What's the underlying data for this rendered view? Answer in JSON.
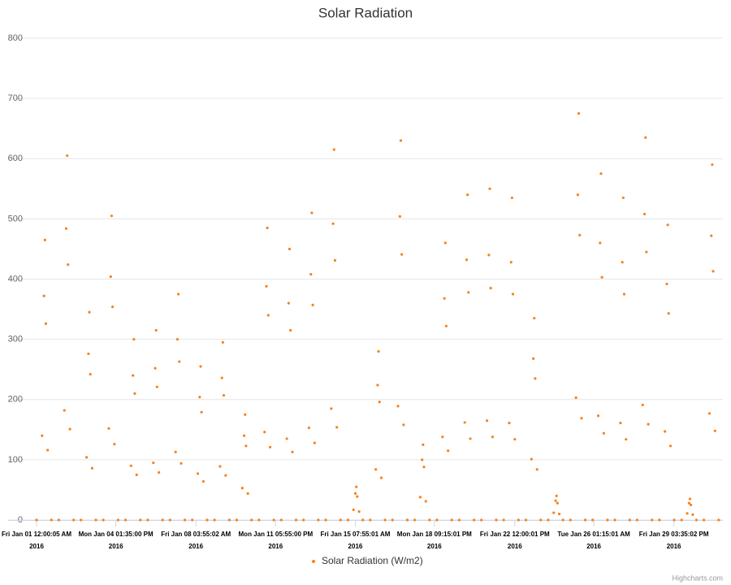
{
  "chart_data": {
    "type": "scatter",
    "title": "Solar Radiation",
    "credits": "Highcharts.com",
    "grid": true,
    "xlim": [
      "2016-01-01 00:00",
      "2016-02-01 00:00"
    ],
    "xticks": [
      {
        "value": "2016-01-01 00:00:05",
        "label": "Fri Jan 01 12:00:05 AM 2016"
      },
      {
        "value": "2016-01-04 13:35:00",
        "label": "Mon Jan 04 01:35:00 PM 2016"
      },
      {
        "value": "2016-01-08 03:55:02",
        "label": "Fri Jan 08 03:55:02 AM 2016"
      },
      {
        "value": "2016-01-11 17:55:00",
        "label": "Mon Jan 11 05:55:00 PM 2016"
      },
      {
        "value": "2016-01-15 07:55:01",
        "label": "Fri Jan 15 07:55:01 AM 2016"
      },
      {
        "value": "2016-01-18 21:15:01",
        "label": "Mon Jan 18 09:15:01 PM 2016"
      },
      {
        "value": "2016-01-22 12:00:01",
        "label": "Fri Jan 22 12:00:01 PM 2016"
      },
      {
        "value": "2016-01-26 01:15:01",
        "label": "Tue Jan 26 01:15:01 AM 2016"
      },
      {
        "value": "2016-01-29 15:35:02",
        "label": "Fri Jan 29 03:35:02 PM 2016"
      }
    ],
    "ylim": [
      0,
      800
    ],
    "yticks": [
      0,
      100,
      200,
      300,
      400,
      500,
      600,
      700,
      800
    ],
    "x": [
      "2016-01-01 00:00",
      "2016-01-01 06:00",
      "2016-01-01 08:00",
      "2016-01-01 09:00",
      "2016-01-01 10:00",
      "2016-01-01 12:00",
      "2016-01-01 16:00",
      "2016-01-02 00:00",
      "2016-01-02 06:00",
      "2016-01-02 08:00",
      "2016-01-02 09:00",
      "2016-01-02 10:00",
      "2016-01-02 12:00",
      "2016-01-02 16:00",
      "2016-01-03 00:00",
      "2016-01-03 06:00",
      "2016-01-03 08:00",
      "2016-01-03 09:00",
      "2016-01-03 10:00",
      "2016-01-03 12:00",
      "2016-01-03 16:00",
      "2016-01-04 00:00",
      "2016-01-04 06:00",
      "2016-01-04 08:00",
      "2016-01-04 09:00",
      "2016-01-04 10:00",
      "2016-01-04 12:00",
      "2016-01-04 16:00",
      "2016-01-05 00:00",
      "2016-01-05 06:00",
      "2016-01-05 08:00",
      "2016-01-05 09:00",
      "2016-01-05 10:00",
      "2016-01-05 12:00",
      "2016-01-05 16:00",
      "2016-01-06 00:00",
      "2016-01-06 06:00",
      "2016-01-06 08:00",
      "2016-01-06 09:00",
      "2016-01-06 10:00",
      "2016-01-06 12:00",
      "2016-01-06 16:00",
      "2016-01-07 00:00",
      "2016-01-07 06:00",
      "2016-01-07 08:00",
      "2016-01-07 09:00",
      "2016-01-07 10:00",
      "2016-01-07 12:00",
      "2016-01-07 16:00",
      "2016-01-08 00:00",
      "2016-01-08 06:00",
      "2016-01-08 08:00",
      "2016-01-08 09:00",
      "2016-01-08 10:00",
      "2016-01-08 12:00",
      "2016-01-08 16:00",
      "2016-01-09 00:00",
      "2016-01-09 06:00",
      "2016-01-09 08:00",
      "2016-01-09 09:00",
      "2016-01-09 10:00",
      "2016-01-09 12:00",
      "2016-01-09 16:00",
      "2016-01-10 00:00",
      "2016-01-10 06:00",
      "2016-01-10 08:00",
      "2016-01-10 09:00",
      "2016-01-10 10:00",
      "2016-01-10 12:00",
      "2016-01-10 16:00",
      "2016-01-11 00:00",
      "2016-01-11 06:00",
      "2016-01-11 08:00",
      "2016-01-11 09:00",
      "2016-01-11 10:00",
      "2016-01-11 12:00",
      "2016-01-11 16:00",
      "2016-01-12 00:00",
      "2016-01-12 06:00",
      "2016-01-12 08:00",
      "2016-01-12 09:00",
      "2016-01-12 10:00",
      "2016-01-12 12:00",
      "2016-01-12 16:00",
      "2016-01-13 00:00",
      "2016-01-13 06:00",
      "2016-01-13 08:00",
      "2016-01-13 09:00",
      "2016-01-13 10:00",
      "2016-01-13 12:00",
      "2016-01-13 16:00",
      "2016-01-14 00:00",
      "2016-01-14 06:00",
      "2016-01-14 08:00",
      "2016-01-14 09:00",
      "2016-01-14 10:00",
      "2016-01-14 12:00",
      "2016-01-14 16:00",
      "2016-01-15 00:00",
      "2016-01-15 06:00",
      "2016-01-15 08:00",
      "2016-01-15 09:00",
      "2016-01-15 10:00",
      "2016-01-15 12:00",
      "2016-01-15 16:00",
      "2016-01-16 00:00",
      "2016-01-16 06:00",
      "2016-01-16 08:00",
      "2016-01-16 09:00",
      "2016-01-16 10:00",
      "2016-01-16 12:00",
      "2016-01-16 16:00",
      "2016-01-17 00:00",
      "2016-01-17 06:00",
      "2016-01-17 08:00",
      "2016-01-17 09:00",
      "2016-01-17 10:00",
      "2016-01-17 12:00",
      "2016-01-17 16:00",
      "2016-01-18 00:00",
      "2016-01-18 06:00",
      "2016-01-18 08:00",
      "2016-01-18 09:00",
      "2016-01-18 10:00",
      "2016-01-18 12:00",
      "2016-01-18 16:00",
      "2016-01-19 00:00",
      "2016-01-19 06:00",
      "2016-01-19 08:00",
      "2016-01-19 09:00",
      "2016-01-19 10:00",
      "2016-01-19 12:00",
      "2016-01-19 16:00",
      "2016-01-20 00:00",
      "2016-01-20 06:00",
      "2016-01-20 08:00",
      "2016-01-20 09:00",
      "2016-01-20 10:00",
      "2016-01-20 12:00",
      "2016-01-20 16:00",
      "2016-01-21 00:00",
      "2016-01-21 06:00",
      "2016-01-21 08:00",
      "2016-01-21 09:00",
      "2016-01-21 10:00",
      "2016-01-21 12:00",
      "2016-01-21 16:00",
      "2016-01-22 00:00",
      "2016-01-22 06:00",
      "2016-01-22 08:00",
      "2016-01-22 09:00",
      "2016-01-22 10:00",
      "2016-01-22 12:00",
      "2016-01-22 16:00",
      "2016-01-23 00:00",
      "2016-01-23 06:00",
      "2016-01-23 08:00",
      "2016-01-23 09:00",
      "2016-01-23 10:00",
      "2016-01-23 12:00",
      "2016-01-23 16:00",
      "2016-01-24 00:00",
      "2016-01-24 06:00",
      "2016-01-24 08:00",
      "2016-01-24 09:00",
      "2016-01-24 10:00",
      "2016-01-24 12:00",
      "2016-01-24 16:00",
      "2016-01-25 00:00",
      "2016-01-25 06:00",
      "2016-01-25 08:00",
      "2016-01-25 09:00",
      "2016-01-25 10:00",
      "2016-01-25 12:00",
      "2016-01-25 16:00",
      "2016-01-26 00:00",
      "2016-01-26 06:00",
      "2016-01-26 08:00",
      "2016-01-26 09:00",
      "2016-01-26 10:00",
      "2016-01-26 12:00",
      "2016-01-26 16:00",
      "2016-01-27 00:00",
      "2016-01-27 06:00",
      "2016-01-27 08:00",
      "2016-01-27 09:00",
      "2016-01-27 10:00",
      "2016-01-27 12:00",
      "2016-01-27 16:00",
      "2016-01-28 00:00",
      "2016-01-28 06:00",
      "2016-01-28 08:00",
      "2016-01-28 09:00",
      "2016-01-28 10:00",
      "2016-01-28 12:00",
      "2016-01-28 16:00",
      "2016-01-29 00:00",
      "2016-01-29 06:00",
      "2016-01-29 08:00",
      "2016-01-29 09:00",
      "2016-01-29 10:00",
      "2016-01-29 12:00",
      "2016-01-29 16:00",
      "2016-01-30 00:00",
      "2016-01-30 06:00",
      "2016-01-30 08:00",
      "2016-01-30 09:00",
      "2016-01-30 10:00",
      "2016-01-30 12:00",
      "2016-01-30 16:00",
      "2016-01-31 00:00",
      "2016-01-31 06:00",
      "2016-01-31 08:00",
      "2016-01-31 09:00",
      "2016-01-31 10:00",
      "2016-01-31 12:00",
      "2016-01-31 16:00"
    ],
    "series": [
      {
        "name": "Solar Radiation (W/m2)",
        "color": "#f7821b",
        "values": [
          0,
          140,
          372,
          465,
          326,
          116,
          0,
          0,
          182,
          484,
          605,
          424,
          151,
          0,
          0,
          104,
          276,
          345,
          242,
          86,
          0,
          0,
          152,
          404,
          505,
          354,
          126,
          0,
          0,
          90,
          240,
          300,
          210,
          75,
          0,
          0,
          95,
          252,
          315,
          221,
          79,
          0,
          0,
          113,
          300,
          375,
          263,
          94,
          0,
          0,
          77,
          204,
          255,
          179,
          64,
          0,
          0,
          89,
          236,
          295,
          207,
          74,
          0,
          0,
          53,
          140,
          175,
          123,
          44,
          0,
          0,
          146,
          388,
          485,
          340,
          121,
          0,
          0,
          135,
          360,
          450,
          315,
          113,
          0,
          0,
          153,
          408,
          510,
          357,
          128,
          0,
          0,
          185,
          492,
          615,
          431,
          154,
          0,
          0,
          17,
          44,
          55,
          39,
          14,
          0,
          0,
          84,
          224,
          280,
          196,
          70,
          0,
          0,
          189,
          504,
          630,
          441,
          158,
          0,
          0,
          38,
          100,
          125,
          88,
          31,
          0,
          0,
          138,
          368,
          460,
          322,
          115,
          0,
          0,
          162,
          432,
          540,
          378,
          135,
          0,
          0,
          165,
          440,
          550,
          385,
          138,
          0,
          0,
          161,
          428,
          535,
          375,
          134,
          0,
          0,
          101,
          268,
          335,
          235,
          84,
          0,
          0,
          12,
          32,
          40,
          28,
          10,
          0,
          0,
          203,
          540,
          675,
          473,
          169,
          0,
          0,
          173,
          460,
          575,
          403,
          144,
          0,
          0,
          161,
          428,
          535,
          375,
          134,
          0,
          0,
          191,
          508,
          635,
          445,
          159,
          0,
          0,
          147,
          392,
          490,
          343,
          123,
          0,
          0,
          11,
          28,
          35,
          25,
          9,
          0,
          0,
          177,
          472,
          590,
          413,
          148,
          0
        ]
      }
    ]
  }
}
